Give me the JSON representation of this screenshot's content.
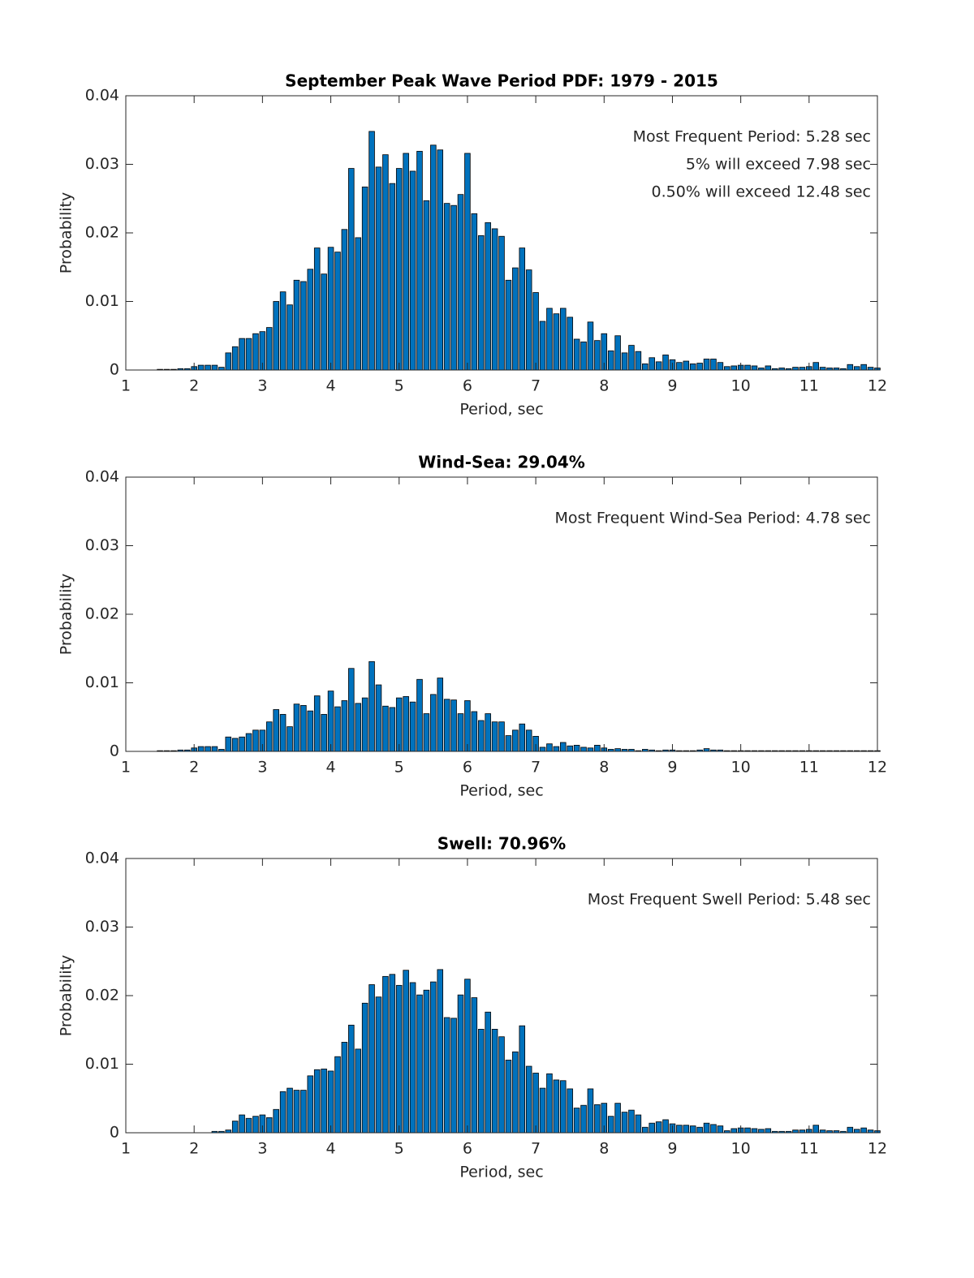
{
  "chart_data": [
    {
      "type": "bar",
      "title": "September Peak Wave Period PDF: 1979 - 2015",
      "x_label": "Period, sec",
      "y_label": "Probability",
      "annotations": [
        "Most Frequent Period: 5.28 sec",
        "5% will exceed 7.98 sec",
        "0.50% will exceed 12.48 sec"
      ],
      "color": "#0072bd",
      "xlim": [
        1,
        12
      ],
      "ylim": [
        0,
        0.04
      ],
      "xticks": [
        1,
        2,
        3,
        4,
        5,
        6,
        7,
        8,
        9,
        10,
        11,
        12
      ],
      "yticks": [
        0,
        0.01,
        0.02,
        0.03,
        0.04
      ],
      "x": [
        1.5,
        1.6,
        1.7,
        1.8,
        1.9,
        2.0,
        2.1,
        2.2,
        2.3,
        2.4,
        2.5,
        2.6,
        2.7,
        2.8,
        2.9,
        3.0,
        3.1,
        3.2,
        3.3,
        3.4,
        3.5,
        3.6,
        3.7,
        3.8,
        3.9,
        4.0,
        4.1,
        4.2,
        4.3,
        4.4,
        4.5,
        4.6,
        4.7,
        4.8,
        4.9,
        5.0,
        5.1,
        5.2,
        5.3,
        5.4,
        5.5,
        5.6,
        5.7,
        5.8,
        5.9,
        6.0,
        6.1,
        6.2,
        6.3,
        6.4,
        6.5,
        6.6,
        6.7,
        6.8,
        6.9,
        7.0,
        7.1,
        7.2,
        7.3,
        7.4,
        7.5,
        7.6,
        7.7,
        7.8,
        7.9,
        8.0,
        8.1,
        8.2,
        8.3,
        8.4,
        8.5,
        8.6,
        8.7,
        8.8,
        8.9,
        9.0,
        9.1,
        9.2,
        9.3,
        9.4,
        9.5,
        9.6,
        9.7,
        9.8,
        9.9,
        10.0,
        10.1,
        10.2,
        10.3,
        10.4,
        10.5,
        10.6,
        10.7,
        10.8,
        10.9,
        11.0,
        11.1,
        11.2,
        11.3,
        11.4,
        11.5,
        11.6,
        11.7,
        11.8,
        11.9,
        12.0
      ],
      "values": [
        0.0001,
        0.0001,
        0.0001,
        0.0002,
        0.0002,
        0.0005,
        0.0007,
        0.0007,
        0.0007,
        0.0004,
        0.0025,
        0.0034,
        0.0046,
        0.0046,
        0.0053,
        0.0056,
        0.0062,
        0.01,
        0.0114,
        0.0095,
        0.0131,
        0.0129,
        0.0147,
        0.0178,
        0.014,
        0.0179,
        0.0172,
        0.0205,
        0.0294,
        0.0193,
        0.0267,
        0.0348,
        0.0296,
        0.0314,
        0.0272,
        0.0294,
        0.0316,
        0.029,
        0.0319,
        0.0247,
        0.0328,
        0.0321,
        0.0243,
        0.024,
        0.0256,
        0.0316,
        0.0228,
        0.0196,
        0.0215,
        0.0206,
        0.0195,
        0.0131,
        0.0149,
        0.0178,
        0.0146,
        0.0113,
        0.0071,
        0.009,
        0.0082,
        0.009,
        0.0077,
        0.0045,
        0.0041,
        0.007,
        0.0043,
        0.0053,
        0.0028,
        0.005,
        0.0025,
        0.0036,
        0.0027,
        0.0009,
        0.0018,
        0.0012,
        0.0022,
        0.0015,
        0.0011,
        0.0013,
        0.0009,
        0.001,
        0.0016,
        0.0016,
        0.0011,
        0.0005,
        0.0006,
        0.0007,
        0.0007,
        0.0006,
        0.0003,
        0.0006,
        0.0002,
        0.0003,
        0.0002,
        0.0004,
        0.0004,
        0.0005,
        0.0011,
        0.0004,
        0.0003,
        0.0003,
        0.0002,
        0.0008,
        0.0005,
        0.0008,
        0.0004,
        0.0003
      ]
    },
    {
      "type": "bar",
      "title": "Wind-Sea: 29.04%",
      "x_label": "Period, sec",
      "y_label": "Probability",
      "annotations": [
        "Most Frequent Wind-Sea Period: 4.78 sec"
      ],
      "color": "#0072bd",
      "xlim": [
        1,
        12
      ],
      "ylim": [
        0,
        0.04
      ],
      "xticks": [
        1,
        2,
        3,
        4,
        5,
        6,
        7,
        8,
        9,
        10,
        11,
        12
      ],
      "yticks": [
        0,
        0.01,
        0.02,
        0.03,
        0.04
      ],
      "x": [
        1.5,
        1.6,
        1.7,
        1.8,
        1.9,
        2.0,
        2.1,
        2.2,
        2.3,
        2.4,
        2.5,
        2.6,
        2.7,
        2.8,
        2.9,
        3.0,
        3.1,
        3.2,
        3.3,
        3.4,
        3.5,
        3.6,
        3.7,
        3.8,
        3.9,
        4.0,
        4.1,
        4.2,
        4.3,
        4.4,
        4.5,
        4.6,
        4.7,
        4.8,
        4.9,
        5.0,
        5.1,
        5.2,
        5.3,
        5.4,
        5.5,
        5.6,
        5.7,
        5.8,
        5.9,
        6.0,
        6.1,
        6.2,
        6.3,
        6.4,
        6.5,
        6.6,
        6.7,
        6.8,
        6.9,
        7.0,
        7.1,
        7.2,
        7.3,
        7.4,
        7.5,
        7.6,
        7.7,
        7.8,
        7.9,
        8.0,
        8.1,
        8.2,
        8.3,
        8.4,
        8.5,
        8.6,
        8.7,
        8.8,
        8.9,
        9.0,
        9.1,
        9.2,
        9.3,
        9.4,
        9.5,
        9.6,
        9.7,
        9.8,
        9.9,
        10.0,
        10.1,
        10.2,
        10.3,
        10.4,
        10.5,
        10.6,
        10.7,
        10.8,
        10.9,
        11.0,
        11.1,
        11.2,
        11.3,
        11.4,
        11.5,
        11.6,
        11.7,
        11.8,
        11.9,
        12.0
      ],
      "values": [
        0.0001,
        0.0001,
        0.0001,
        0.0002,
        0.0002,
        0.0005,
        0.0007,
        0.0007,
        0.0007,
        0.0003,
        0.0021,
        0.0019,
        0.0021,
        0.0026,
        0.0031,
        0.0031,
        0.0043,
        0.0061,
        0.0054,
        0.0036,
        0.0069,
        0.0067,
        0.0059,
        0.0081,
        0.0054,
        0.0088,
        0.0065,
        0.0074,
        0.0121,
        0.007,
        0.0078,
        0.0131,
        0.0097,
        0.0066,
        0.0064,
        0.0078,
        0.008,
        0.0072,
        0.0105,
        0.0055,
        0.0083,
        0.0107,
        0.0076,
        0.0075,
        0.0055,
        0.0074,
        0.0058,
        0.0045,
        0.0055,
        0.0043,
        0.0043,
        0.0023,
        0.0031,
        0.004,
        0.0031,
        0.0022,
        0.0006,
        0.0011,
        0.0007,
        0.0013,
        0.0008,
        0.0009,
        0.0006,
        0.0005,
        0.0009,
        0.0005,
        0.0003,
        0.0004,
        0.0003,
        0.0003,
        0.0001,
        0.0003,
        0.0002,
        0.0001,
        0.0002,
        0.0002,
        0.0001,
        0.0001,
        0.0001,
        0.0002,
        0.0004,
        0.0002,
        0.0002,
        0.0001,
        0.0001,
        0.0001,
        0.0001,
        0.0001,
        0.0001,
        0.0001,
        0.0001,
        0.0001,
        0.0001,
        0.0001,
        0.0001,
        0.0001,
        0.0001,
        0.0001,
        0.0001,
        0.0001,
        0.0001,
        0.0001,
        0.0001,
        0.0001,
        0.0001,
        0.0001
      ]
    },
    {
      "type": "bar",
      "title": "Swell: 70.96%",
      "x_label": "Period, sec",
      "y_label": "Probability",
      "annotations": [
        "Most Frequent Swell Period: 5.48 sec"
      ],
      "color": "#0072bd",
      "xlim": [
        1,
        12
      ],
      "ylim": [
        0,
        0.04
      ],
      "xticks": [
        1,
        2,
        3,
        4,
        5,
        6,
        7,
        8,
        9,
        10,
        11,
        12
      ],
      "yticks": [
        0,
        0.01,
        0.02,
        0.03,
        0.04
      ],
      "x": [
        1.5,
        1.6,
        1.7,
        1.8,
        1.9,
        2.0,
        2.1,
        2.2,
        2.3,
        2.4,
        2.5,
        2.6,
        2.7,
        2.8,
        2.9,
        3.0,
        3.1,
        3.2,
        3.3,
        3.4,
        3.5,
        3.6,
        3.7,
        3.8,
        3.9,
        4.0,
        4.1,
        4.2,
        4.3,
        4.4,
        4.5,
        4.6,
        4.7,
        4.8,
        4.9,
        5.0,
        5.1,
        5.2,
        5.3,
        5.4,
        5.5,
        5.6,
        5.7,
        5.8,
        5.9,
        6.0,
        6.1,
        6.2,
        6.3,
        6.4,
        6.5,
        6.6,
        6.7,
        6.8,
        6.9,
        7.0,
        7.1,
        7.2,
        7.3,
        7.4,
        7.5,
        7.6,
        7.7,
        7.8,
        7.9,
        8.0,
        8.1,
        8.2,
        8.3,
        8.4,
        8.5,
        8.6,
        8.7,
        8.8,
        8.9,
        9.0,
        9.1,
        9.2,
        9.3,
        9.4,
        9.5,
        9.6,
        9.7,
        9.8,
        9.9,
        10.0,
        10.1,
        10.2,
        10.3,
        10.4,
        10.5,
        10.6,
        10.7,
        10.8,
        10.9,
        11.0,
        11.1,
        11.2,
        11.3,
        11.4,
        11.5,
        11.6,
        11.7,
        11.8,
        11.9,
        12.0
      ],
      "values": [
        0,
        0,
        0,
        0,
        0,
        0,
        0,
        0,
        0.0002,
        0.0002,
        0.0004,
        0.0017,
        0.0026,
        0.0021,
        0.0024,
        0.0026,
        0.0022,
        0.0034,
        0.006,
        0.0065,
        0.0062,
        0.0062,
        0.0083,
        0.0092,
        0.0093,
        0.009,
        0.0111,
        0.0132,
        0.0157,
        0.0122,
        0.0189,
        0.0216,
        0.0198,
        0.0228,
        0.0231,
        0.0215,
        0.0237,
        0.0219,
        0.0201,
        0.0208,
        0.022,
        0.0238,
        0.0168,
        0.0167,
        0.0201,
        0.0224,
        0.0197,
        0.0151,
        0.0176,
        0.0151,
        0.014,
        0.0106,
        0.0118,
        0.0156,
        0.0097,
        0.0087,
        0.0065,
        0.0086,
        0.0077,
        0.0076,
        0.0064,
        0.0036,
        0.004,
        0.0064,
        0.0041,
        0.0043,
        0.0024,
        0.0043,
        0.003,
        0.0033,
        0.0026,
        0.0008,
        0.0014,
        0.0016,
        0.0019,
        0.0013,
        0.0011,
        0.0011,
        0.001,
        0.0008,
        0.0014,
        0.0012,
        0.001,
        0.0003,
        0.0006,
        0.0007,
        0.0007,
        0.0006,
        0.0005,
        0.0006,
        0.0002,
        0.0002,
        0.0002,
        0.0004,
        0.0004,
        0.0005,
        0.0011,
        0.0004,
        0.0003,
        0.0003,
        0.0002,
        0.0008,
        0.0005,
        0.0007,
        0.0004,
        0.0003
      ]
    }
  ]
}
